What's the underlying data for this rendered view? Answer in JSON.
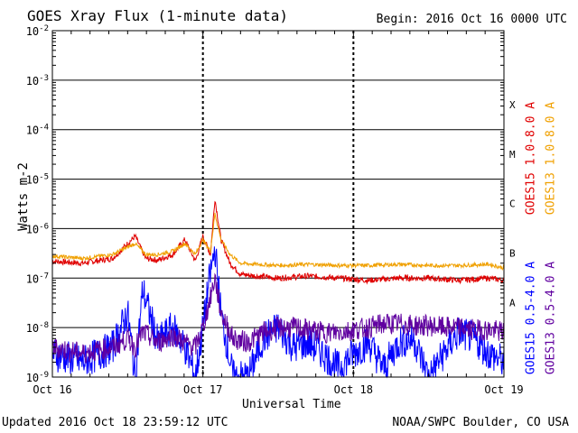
{
  "header": {
    "title": "GOES Xray Flux (1-minute data)",
    "begin": "Begin:  2016 Oct 16 0000 UTC"
  },
  "footer": {
    "updated": "Updated 2016 Oct 18 23:59:12 UTC",
    "credit": "NOAA/SWPC Boulder, CO USA"
  },
  "chart_data": {
    "type": "line",
    "title": "GOES Xray Flux (1-minute data)",
    "xlabel": "Universal Time",
    "ylabel": "Watts m-2",
    "yscale": "log",
    "ylim": [
      1e-09,
      0.01
    ],
    "x_ticks": [
      "Oct 16",
      "Oct 17",
      "Oct 18",
      "Oct 19"
    ],
    "y_ticks": [
      "10-9",
      "10-8",
      "10-7",
      "10-6",
      "10-5",
      "10-4",
      "10-3",
      "10-2"
    ],
    "flare_classes": [
      "A",
      "B",
      "C",
      "M",
      "X"
    ],
    "grid": true,
    "x_units": "days since 2016 Oct 16 0000 UTC",
    "series": [
      {
        "name": "GOES15 1.0-8.0 A",
        "color": "#e00000",
        "x": [
          0,
          0.2,
          0.4,
          0.55,
          0.62,
          0.7,
          0.8,
          0.88,
          0.95,
          1.0,
          1.05,
          1.08,
          1.12,
          1.18,
          1.25,
          1.35,
          1.5,
          1.7,
          1.9,
          2.1,
          2.3,
          2.5,
          2.7,
          2.9,
          3.0
        ],
        "values": [
          2.2e-07,
          2e-07,
          2.5e-07,
          7e-07,
          2.5e-07,
          2.3e-07,
          3e-07,
          6e-07,
          2.2e-07,
          7e-07,
          3e-07,
          4e-06,
          6e-07,
          2e-07,
          1.2e-07,
          1.1e-07,
          1e-07,
          1.1e-07,
          1e-07,
          9e-08,
          1e-07,
          1e-07,
          9e-08,
          1e-07,
          9e-08
        ]
      },
      {
        "name": "GOES13 1.0-8.0 A",
        "color": "#f0a000",
        "x": [
          0,
          0.2,
          0.4,
          0.55,
          0.62,
          0.7,
          0.8,
          0.88,
          0.95,
          1.0,
          1.05,
          1.08,
          1.12,
          1.18,
          1.25,
          1.35,
          1.5,
          1.7,
          1.9,
          2.1,
          2.3,
          2.5,
          2.7,
          2.9,
          3.0
        ],
        "values": [
          2.8e-07,
          2.5e-07,
          3e-07,
          5e-07,
          3e-07,
          3e-07,
          3.5e-07,
          5e-07,
          3e-07,
          6e-07,
          3.5e-07,
          2e-06,
          6e-07,
          3e-07,
          2e-07,
          1.9e-07,
          1.8e-07,
          1.9e-07,
          1.8e-07,
          1.8e-07,
          1.9e-07,
          1.8e-07,
          1.8e-07,
          1.9e-07,
          1.6e-07
        ]
      },
      {
        "name": "GOES15 0.5-4.0 A",
        "color": "#0000ff",
        "x": [
          0,
          0.2,
          0.4,
          0.5,
          0.55,
          0.6,
          0.7,
          0.8,
          0.88,
          0.95,
          1.0,
          1.04,
          1.08,
          1.12,
          1.2,
          1.3,
          1.4,
          1.5,
          1.6,
          1.7,
          1.8,
          1.9,
          2.0,
          2.1,
          2.2,
          2.3,
          2.4,
          2.5,
          2.6,
          2.7,
          2.8,
          2.9,
          3.0
        ],
        "values": [
          3e-09,
          2e-09,
          4e-09,
          2e-08,
          1e-09,
          6e-08,
          5e-09,
          1e-08,
          4e-09,
          1e-09,
          1e-08,
          8e-08,
          4e-07,
          2e-08,
          1e-09,
          1e-09,
          6e-09,
          1e-08,
          4e-09,
          5e-09,
          3e-09,
          1.5e-09,
          3e-09,
          5e-09,
          1.5e-09,
          5e-09,
          6e-09,
          1e-09,
          3e-09,
          8e-09,
          6e-09,
          3e-09,
          2e-09
        ]
      },
      {
        "name": "GOES13 0.5-4.0 A",
        "color": "#6000a0",
        "x": [
          0,
          0.2,
          0.4,
          0.5,
          0.55,
          0.6,
          0.7,
          0.8,
          0.88,
          0.95,
          1.0,
          1.04,
          1.08,
          1.12,
          1.2,
          1.3,
          1.4,
          1.5,
          1.6,
          1.7,
          1.8,
          1.9,
          2.0,
          2.1,
          2.2,
          2.3,
          2.4,
          2.5,
          2.6,
          2.7,
          2.8,
          2.9,
          3.0
        ],
        "values": [
          4e-09,
          3e-09,
          4e-09,
          6e-09,
          4e-09,
          8e-09,
          5e-09,
          7e-09,
          5e-09,
          4e-09,
          1e-08,
          3e-08,
          1e-07,
          2e-08,
          6e-09,
          5e-09,
          8e-09,
          1e-08,
          1e-08,
          9e-09,
          8e-09,
          8e-09,
          9e-09,
          1e-08,
          1.2e-08,
          1.2e-08,
          1.1e-08,
          1.1e-08,
          1e-08,
          1e-08,
          9e-09,
          9e-09,
          8e-09
        ]
      }
    ]
  }
}
